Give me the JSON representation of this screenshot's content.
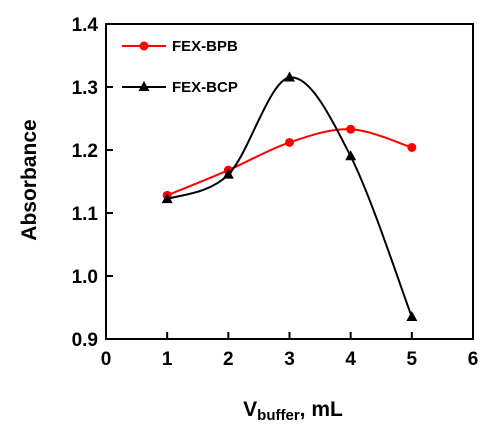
{
  "chart_data": {
    "type": "line",
    "xlabel": {
      "main": "V",
      "sub": "buffer",
      "suffix": ", mL"
    },
    "ylabel": "Absorbance",
    "xlim": [
      0,
      6
    ],
    "ylim": [
      0.9,
      1.4
    ],
    "xticks": [
      0,
      1,
      2,
      3,
      4,
      5,
      6
    ],
    "xtick_labels": [
      "0",
      "1",
      "2",
      "3",
      "4",
      "5",
      "6"
    ],
    "yticks": [
      0.9,
      1.0,
      1.1,
      1.2,
      1.3,
      1.4
    ],
    "ytick_labels": [
      "0.9",
      "1.0",
      "1.1",
      "1.2",
      "1.3",
      "1.4"
    ],
    "grid": false,
    "legend_position": "top-left",
    "x": [
      1,
      2,
      3,
      4,
      5
    ],
    "series": [
      {
        "name": "FEX-BPB",
        "color": "#ff0000",
        "marker": "circle",
        "values": [
          1.128,
          1.168,
          1.212,
          1.233,
          1.204
        ]
      },
      {
        "name": "FEX-BCP",
        "color": "#000000",
        "marker": "triangle",
        "values": [
          1.122,
          1.161,
          1.315,
          1.19,
          0.935
        ]
      }
    ]
  }
}
